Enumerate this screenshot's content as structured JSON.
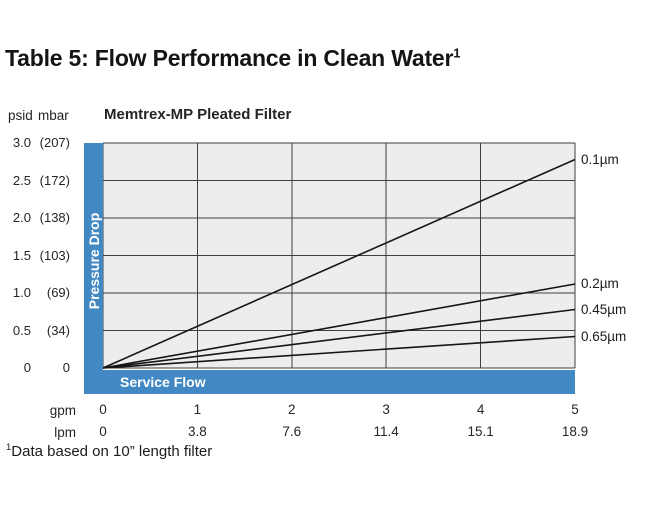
{
  "page": {
    "title": "Table 5: Flow Performance in Clean Water",
    "title_superscript": "1",
    "footnote_superscript": "1",
    "footnote": "Data based on 10” length filter"
  },
  "chart_data": {
    "type": "line",
    "title": "Memtrex-MP Pleated Filter",
    "x_axis": {
      "label": "Service Flow",
      "unit_rows": [
        "gpm",
        "lpm"
      ],
      "gpm_ticks": [
        "0",
        "1",
        "2",
        "3",
        "4",
        "5"
      ],
      "lpm_ticks": [
        "0",
        "3.8",
        "7.6",
        "11.4",
        "15.1",
        "18.9"
      ],
      "range_gpm": [
        0,
        5
      ]
    },
    "y_axis": {
      "label": "Pressure Drop",
      "unit_left": "psid",
      "unit_right": "mbar",
      "ticks": [
        {
          "psid": "3.0",
          "mbar": "(207)"
        },
        {
          "psid": "2.5",
          "mbar": "(172)"
        },
        {
          "psid": "2.0",
          "mbar": "(138)"
        },
        {
          "psid": "1.5",
          "mbar": "(103)"
        },
        {
          "psid": "1.0",
          "mbar": "(69)"
        },
        {
          "psid": "0.5",
          "mbar": "(34)"
        },
        {
          "psid": "0",
          "mbar": "0"
        }
      ],
      "range_psid": [
        0,
        3.0
      ]
    },
    "series": [
      {
        "name": "0.1µm",
        "x_gpm": [
          0,
          5
        ],
        "y_psid": [
          0,
          2.78
        ]
      },
      {
        "name": "0.2µm",
        "x_gpm": [
          0,
          5
        ],
        "y_psid": [
          0,
          1.12
        ]
      },
      {
        "name": "0.45µm",
        "x_gpm": [
          0,
          5
        ],
        "y_psid": [
          0,
          0.78
        ]
      },
      {
        "name": "0.65µm",
        "x_gpm": [
          0,
          5
        ],
        "y_psid": [
          0,
          0.42
        ]
      }
    ],
    "grid": true,
    "legend_position": "right-of-lines",
    "colors": {
      "bar_blue": "#4289c4",
      "plot_bg": "#ededed",
      "grid": "#3f3f3f",
      "line": "#161616"
    }
  }
}
